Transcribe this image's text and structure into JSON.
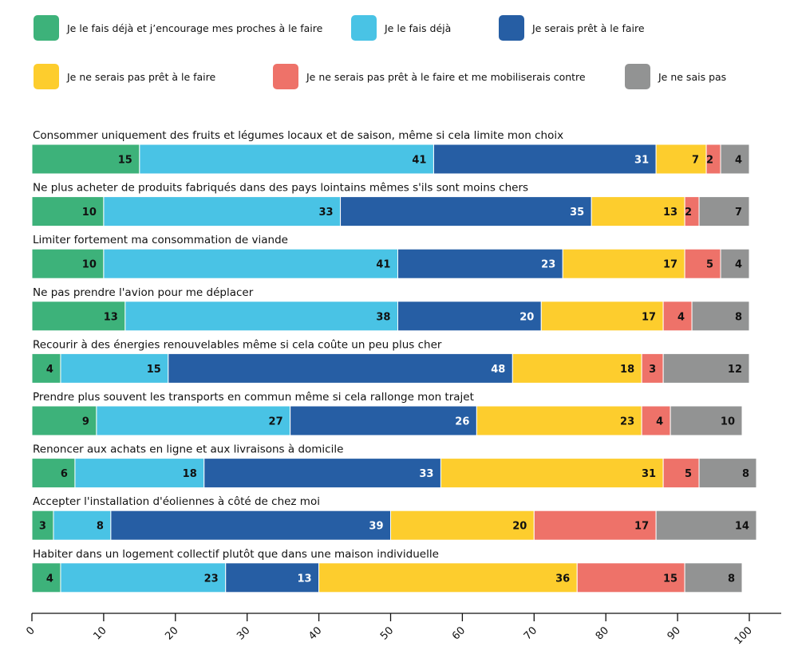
{
  "legend": [
    {
      "label": "Je le fais déjà et j’encourage mes proches à le faire",
      "color": "#3db27a"
    },
    {
      "label": "Je le fais déjà",
      "color": "#49c3e5"
    },
    {
      "label": "Je serais prêt à le faire",
      "color": "#265ea4"
    },
    {
      "label": "Je ne serais pas prêt à le faire",
      "color": "#fdcd2d"
    },
    {
      "label": "Je ne serais pas prêt à le faire et me mobiliserais contre",
      "color": "#ee7269"
    },
    {
      "label": "Je ne sais pas",
      "color": "#929393"
    }
  ],
  "chart_data": {
    "type": "bar",
    "orientation": "horizontal",
    "stacked": true,
    "title": "",
    "xlabel": "",
    "ylabel": "",
    "xlim": [
      0,
      100
    ],
    "xticks": [
      "0",
      "10",
      "20",
      "30",
      "40",
      "50",
      "60",
      "70",
      "80",
      "90",
      "100"
    ],
    "grid": false,
    "legend_position": "top",
    "categories": [
      "Consommer uniquement des fruits et légumes locaux et de saison, même si cela limite mon choix",
      "Ne plus acheter de produits fabriqués dans des pays lointains mêmes s'ils sont moins chers",
      "Limiter fortement ma consommation de viande",
      "Ne pas prendre l'avion pour me déplacer",
      "Recourir à des énergies renouvelables même si cela coûte un peu plus cher",
      "Prendre plus souvent les transports en commun même si cela rallonge mon trajet",
      "Renoncer aux achats en ligne et aux livraisons à domicile",
      "Accepter l'installation d'éoliennes à côté de chez moi",
      "Habiter dans un logement collectif plutôt que dans une maison individuelle"
    ],
    "series": [
      {
        "name": "Je le fais déjà et j’encourage mes proches à le faire",
        "color": "#3db27a",
        "label_color": "#111111",
        "values": [
          15,
          10,
          10,
          13,
          4,
          9,
          6,
          3,
          4
        ]
      },
      {
        "name": "Je le fais déjà",
        "color": "#49c3e5",
        "label_color": "#111111",
        "values": [
          41,
          33,
          41,
          38,
          15,
          27,
          18,
          8,
          23
        ]
      },
      {
        "name": "Je serais prêt à le faire",
        "color": "#265ea4",
        "label_color": "#ffffff",
        "values": [
          31,
          35,
          23,
          20,
          48,
          26,
          33,
          39,
          13
        ]
      },
      {
        "name": "Je ne serais pas prêt à le faire",
        "color": "#fdcd2d",
        "label_color": "#111111",
        "values": [
          7,
          13,
          17,
          17,
          18,
          23,
          31,
          20,
          36
        ]
      },
      {
        "name": "Je ne serais pas prêt à le faire et me mobiliserais contre",
        "color": "#ee7269",
        "label_color": "#111111",
        "values": [
          2,
          2,
          5,
          4,
          3,
          4,
          5,
          17,
          15
        ]
      },
      {
        "name": "Je ne sais pas",
        "color": "#929393",
        "label_color": "#111111",
        "values": [
          4,
          7,
          4,
          8,
          12,
          10,
          8,
          14,
          8
        ]
      }
    ]
  }
}
